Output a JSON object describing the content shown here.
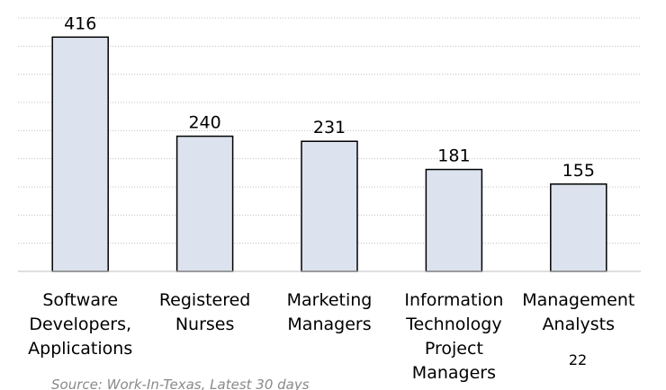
{
  "chart_data": {
    "type": "bar",
    "categories": [
      [
        "Software",
        "Developers,",
        "Applications"
      ],
      [
        "Registered",
        "Nurses"
      ],
      [
        "Marketing",
        "Managers"
      ],
      [
        "Information",
        "Technology",
        "Project",
        "Managers"
      ],
      [
        "Management",
        "Analysts"
      ]
    ],
    "values": [
      416,
      240,
      231,
      181,
      155
    ],
    "color": "#dce3ef",
    "ylim": [
      0,
      450
    ],
    "yticks": [
      0,
      50,
      100,
      150,
      200,
      250,
      300,
      350,
      400,
      450
    ],
    "grid": true,
    "source": "Source: Work-In-Texas, Latest 30 days",
    "page_number": "22"
  }
}
